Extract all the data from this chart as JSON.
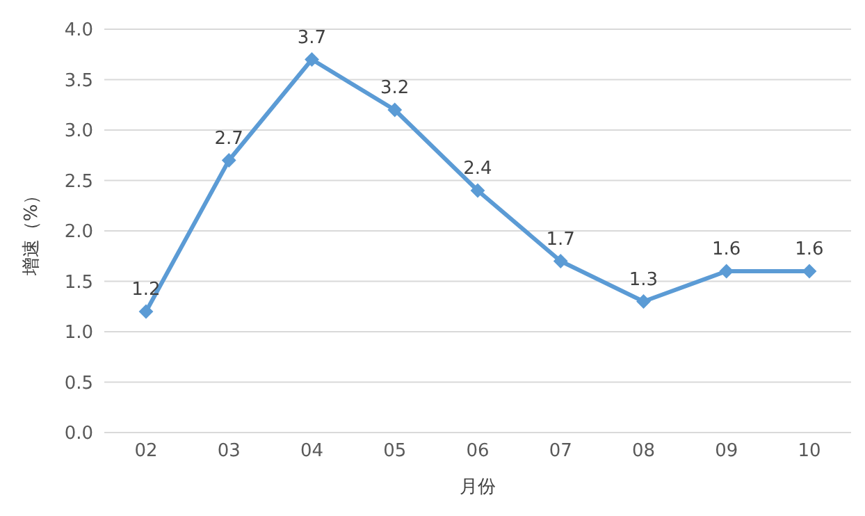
{
  "chart_data": {
    "type": "line",
    "xlabel": "月份",
    "ylabel": "增速（%）",
    "categories": [
      "02",
      "03",
      "04",
      "05",
      "06",
      "07",
      "08",
      "09",
      "10"
    ],
    "series": [
      {
        "color": "#5b9bd5",
        "values": [
          1.2,
          2.7,
          3.7,
          3.2,
          2.4,
          1.7,
          1.3,
          1.6,
          1.6
        ]
      }
    ],
    "ylim": [
      0,
      4
    ],
    "yticks": [
      "0.0",
      "0.5",
      "1.0",
      "1.5",
      "2.0",
      "2.5",
      "3.0",
      "3.5",
      "4.0"
    ],
    "grid": "y",
    "marker": "diamond",
    "line_style": "solid",
    "data_labels": true,
    "legend": false
  }
}
